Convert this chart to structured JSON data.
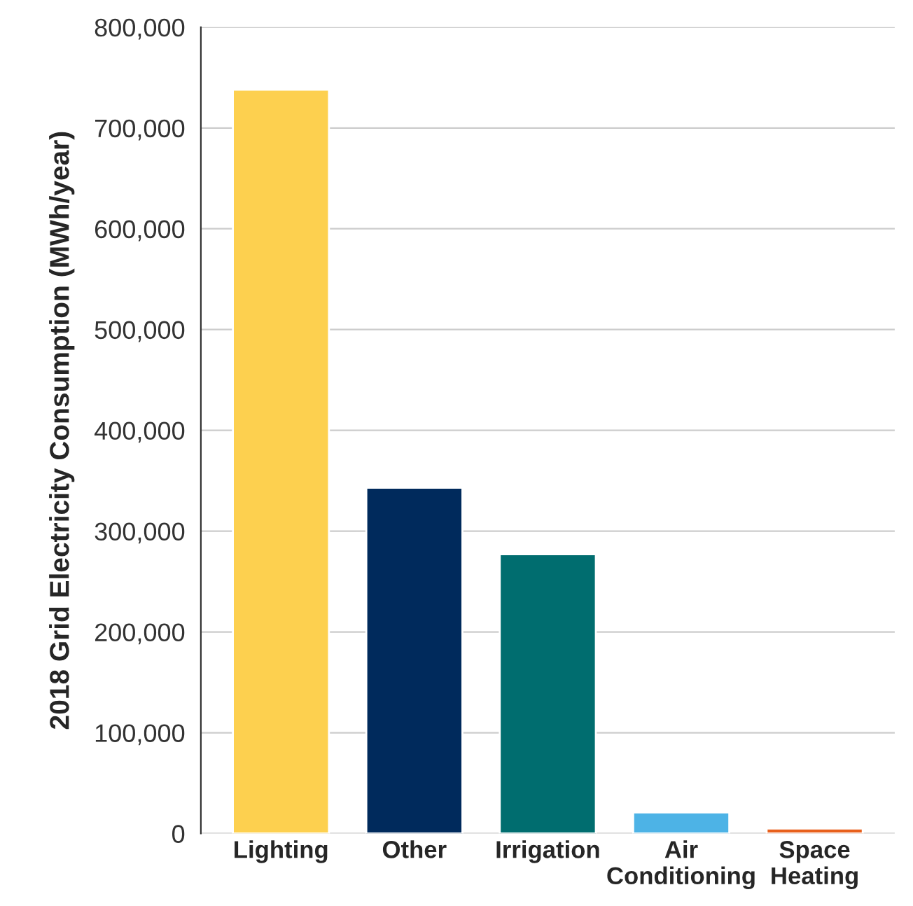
{
  "chart_data": {
    "type": "bar",
    "ylabel": "2018 Grid Electricity Consumption (MWh/year)",
    "categories": [
      "Lighting",
      "Other",
      "Irrigation",
      "Air\nConditioning",
      "Space\nHeating"
    ],
    "values": [
      738000,
      343000,
      277000,
      21000,
      5000
    ],
    "colors": [
      "#fdd04f",
      "#002a5c",
      "#006d6f",
      "#4db3e6",
      "#e8601c"
    ],
    "ylim": [
      0,
      800000
    ],
    "yticks": [
      {
        "value": 0,
        "label": "0"
      },
      {
        "value": 100000,
        "label": "100,000"
      },
      {
        "value": 200000,
        "label": "200,000"
      },
      {
        "value": 300000,
        "label": "300,000"
      },
      {
        "value": 400000,
        "label": "400,000"
      },
      {
        "value": 500000,
        "label": "500,000"
      },
      {
        "value": 600000,
        "label": "600,000"
      },
      {
        "value": 700000,
        "label": "700,000"
      },
      {
        "value": 800000,
        "label": "800,000"
      }
    ],
    "grid": "y"
  }
}
